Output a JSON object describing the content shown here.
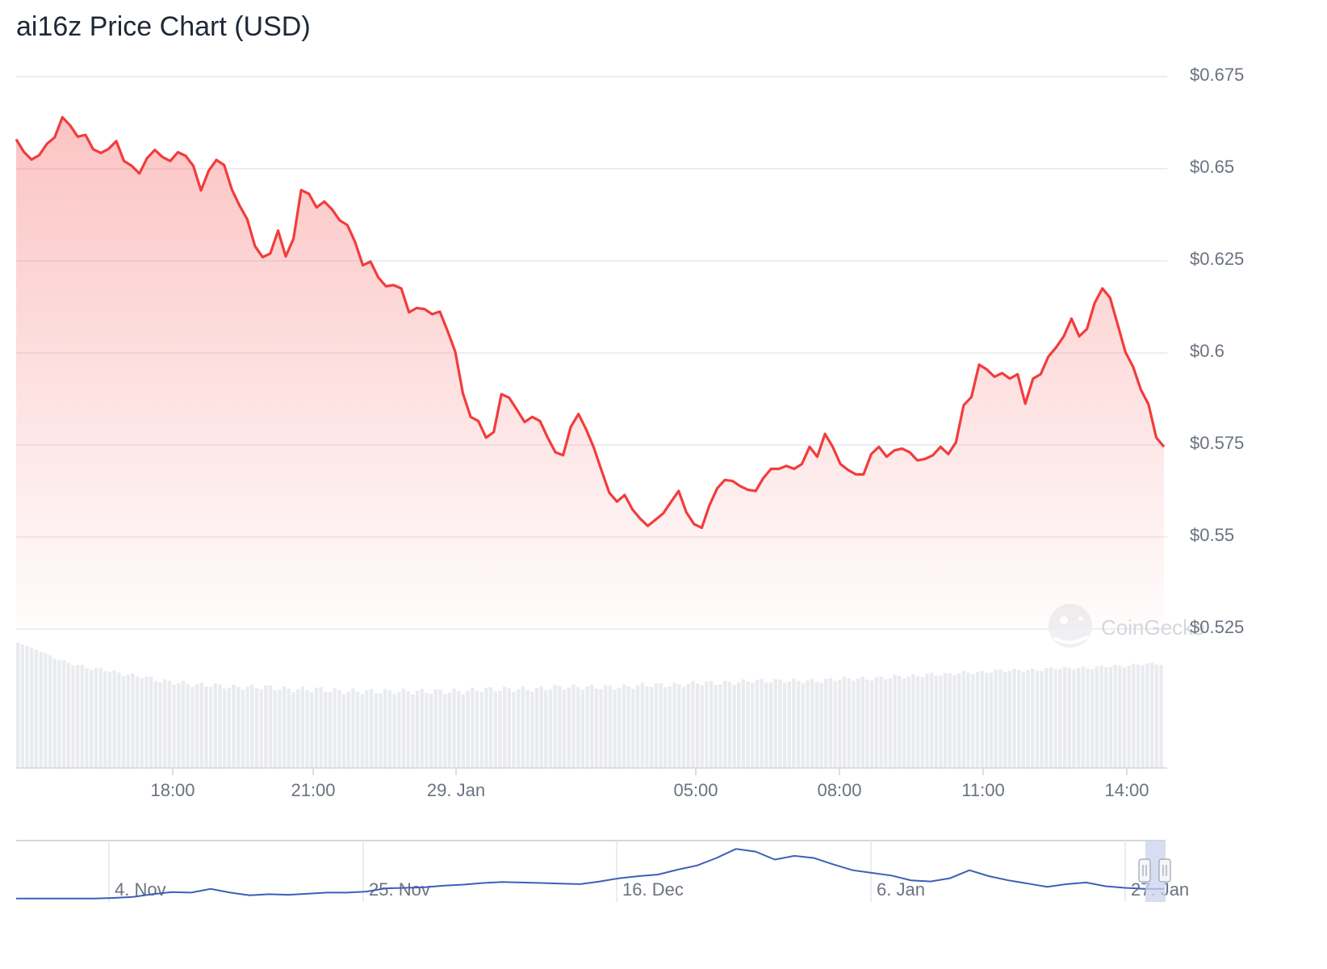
{
  "title": "ai16z Price Chart (USD)",
  "watermark": "CoinGecko",
  "colors": {
    "price_line": "#f23c3c",
    "grid": "#e7e9ee",
    "volume": "#e9ebef",
    "navigator_line": "#3d5fb8",
    "axis_text": "#6b7280",
    "navigator_selection": "#c9d3ec"
  },
  "chart_data": [
    {
      "type": "area",
      "series": [
        {
          "name": "Price",
          "values_usd": [
            0.658,
            0.6546,
            0.6525,
            0.6537,
            0.6568,
            0.6585,
            0.664,
            0.6618,
            0.6587,
            0.6592,
            0.6553,
            0.6543,
            0.6554,
            0.6575,
            0.6521,
            0.6508,
            0.6487,
            0.6529,
            0.6551,
            0.6532,
            0.6521,
            0.6545,
            0.6535,
            0.6508,
            0.6441,
            0.6495,
            0.6524,
            0.651,
            0.6444,
            0.64,
            0.6363,
            0.629,
            0.626,
            0.627,
            0.6332,
            0.6262,
            0.631,
            0.6442,
            0.6432,
            0.6395,
            0.6411,
            0.639,
            0.636,
            0.6347,
            0.6301,
            0.6238,
            0.6248,
            0.6205,
            0.6181,
            0.6184,
            0.6175,
            0.611,
            0.6122,
            0.6119,
            0.6105,
            0.6112,
            0.606,
            0.6003,
            0.589,
            0.5826,
            0.5815,
            0.577,
            0.5785,
            0.5888,
            0.5878,
            0.5846,
            0.5812,
            0.5826,
            0.5815,
            0.577,
            0.573,
            0.5722,
            0.5799,
            0.5834,
            0.5792,
            0.5742,
            0.568,
            0.562,
            0.5596,
            0.5614,
            0.5575,
            0.555,
            0.553,
            0.5547,
            0.5564,
            0.5595,
            0.5625,
            0.5567,
            0.5535,
            0.5525,
            0.5586,
            0.5632,
            0.5655,
            0.5652,
            0.5638,
            0.5628,
            0.5625,
            0.566,
            0.5685,
            0.5685,
            0.5693,
            0.5685,
            0.5698,
            0.5745,
            0.5718,
            0.578,
            0.5745,
            0.5698,
            0.5682,
            0.567,
            0.567,
            0.5725,
            0.5745,
            0.5718,
            0.5735,
            0.574,
            0.573,
            0.5708,
            0.5712,
            0.5722,
            0.5745,
            0.5725,
            0.5757,
            0.5858,
            0.588,
            0.5968,
            0.5955,
            0.5935,
            0.5945,
            0.593,
            0.5942,
            0.5862,
            0.593,
            0.5942,
            0.599,
            0.6015,
            0.6045,
            0.6093,
            0.6045,
            0.6065,
            0.6135,
            0.6175,
            0.615,
            0.6077,
            0.6002,
            0.5962,
            0.59,
            0.586,
            0.577,
            0.5745
          ]
        }
      ],
      "xlabel": "",
      "ylabel": "",
      "y_ticks": [
        "$0.675",
        "$0.65",
        "$0.625",
        "$0.6",
        "$0.575",
        "$0.55",
        "$0.525"
      ],
      "x_ticks": [
        "18:00",
        "21:00",
        "29. Jan",
        "05:00",
        "08:00",
        "11:00",
        "14:00"
      ],
      "ylim": [
        0.525,
        0.675
      ],
      "grid": true,
      "y_axis_position": "right"
    },
    {
      "type": "bar",
      "series": [
        {
          "name": "Volume",
          "values_relative": [
            1.0,
            0.97,
            0.93,
            0.9,
            0.88,
            0.87,
            0.85,
            0.84,
            0.82,
            0.81,
            0.8,
            0.8,
            0.79,
            0.79,
            0.79,
            0.78,
            0.78,
            0.78,
            0.77,
            0.77,
            0.77,
            0.77,
            0.77,
            0.77,
            0.77,
            0.77,
            0.78,
            0.78,
            0.78,
            0.78,
            0.79,
            0.79,
            0.79,
            0.79,
            0.79,
            0.8,
            0.8,
            0.8,
            0.81,
            0.81,
            0.81,
            0.82,
            0.82,
            0.82,
            0.82,
            0.82,
            0.83,
            0.83,
            0.83,
            0.84,
            0.84,
            0.85,
            0.85,
            0.86,
            0.86,
            0.87,
            0.87,
            0.87,
            0.88,
            0.88,
            0.88,
            0.89,
            0.89,
            0.9,
            0.9
          ]
        }
      ]
    },
    {
      "type": "line",
      "name": "navigator",
      "x_ticks": [
        "4. Nov",
        "25. Nov",
        "16. Dec",
        "6. Jan",
        "27. Jan"
      ],
      "values_relative": [
        0.02,
        0.02,
        0.02,
        0.02,
        0.02,
        0.03,
        0.05,
        0.1,
        0.14,
        0.13,
        0.2,
        0.13,
        0.08,
        0.1,
        0.09,
        0.11,
        0.13,
        0.13,
        0.15,
        0.21,
        0.22,
        0.23,
        0.26,
        0.28,
        0.31,
        0.33,
        0.32,
        0.31,
        0.3,
        0.29,
        0.34,
        0.4,
        0.44,
        0.47,
        0.56,
        0.64,
        0.78,
        0.95,
        0.9,
        0.75,
        0.82,
        0.78,
        0.66,
        0.55,
        0.5,
        0.45,
        0.36,
        0.34,
        0.4,
        0.55,
        0.44,
        0.36,
        0.3,
        0.24,
        0.29,
        0.32,
        0.25,
        0.22,
        0.2,
        0.2
      ]
    }
  ]
}
